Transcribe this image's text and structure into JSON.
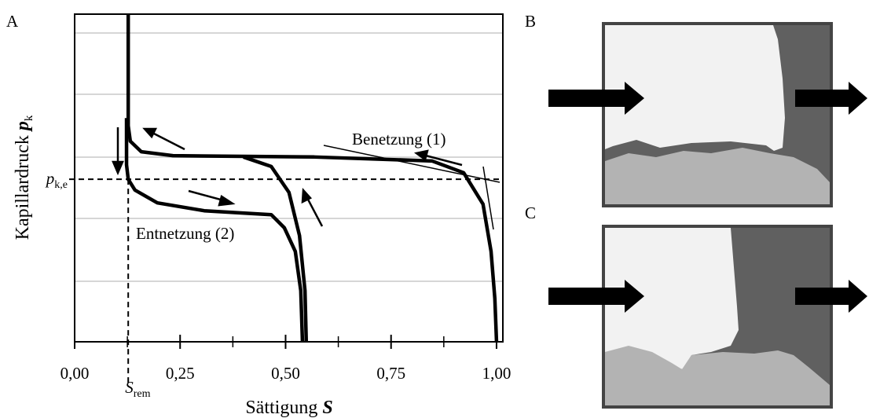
{
  "chart_data": {
    "type": "line",
    "panel_label": "A",
    "x_label": {
      "text": "Sättigung ",
      "symbol": "S"
    },
    "y_label": {
      "text": "Kapillardruck ",
      "symbol": "p",
      "subscript": "k"
    },
    "xlim": [
      0,
      1.015
    ],
    "ylim": [
      0,
      1
    ],
    "xticks": [
      {
        "value": 0,
        "label": "0,00"
      },
      {
        "value": 0.25,
        "label": "0,25"
      },
      {
        "value": 0.5,
        "label": "0,50"
      },
      {
        "value": 0.75,
        "label": "0,75"
      },
      {
        "value": 1,
        "label": "1,00"
      }
    ],
    "xminorticks": [
      0.125,
      0.375,
      0.625,
      0.875
    ],
    "entry_pressure": {
      "value": 0.496,
      "symbol": "p",
      "subscript": "k,e"
    },
    "residual_saturation": {
      "value": 0.127,
      "symbol": "S",
      "subscript": "rem"
    },
    "series": [
      {
        "color": "#000000",
        "x": [
          0.127,
          0.127,
          0.132,
          0.158,
          0.233,
          0.568,
          0.847,
          0.922,
          0.968,
          0.987,
          0.996,
          1.0
        ],
        "values": [
          1.0,
          0.659,
          0.612,
          0.58,
          0.568,
          0.564,
          0.552,
          0.516,
          0.42,
          0.276,
          0.132,
          0
        ]
      },
      {
        "color": "#000000",
        "x": [
          0.123,
          0.123,
          0.127,
          0.143,
          0.196,
          0.307,
          0.466,
          0.497,
          0.523,
          0.536,
          0.54
        ],
        "values": [
          0.683,
          0.54,
          0.496,
          0.463,
          0.424,
          0.4,
          0.388,
          0.348,
          0.276,
          0.156,
          0
        ]
      },
      {
        "color": "#000000",
        "x": [
          0.549,
          0.546,
          0.533,
          0.508,
          0.466,
          0.4
        ],
        "values": [
          0,
          0.156,
          0.324,
          0.456,
          0.535,
          0.564
        ]
      }
    ],
    "annotations": [
      "Benetzung (1)",
      "Entnetzung (2)"
    ],
    "panels": [
      "B",
      "C"
    ]
  }
}
